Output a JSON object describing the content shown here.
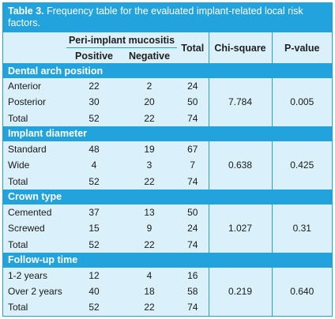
{
  "table": {
    "title_bold": "Table 3.",
    "title_rest": " Frequency table for the evaluated implant-related local risk factors.",
    "headers": {
      "group": "Peri-implant mucositis",
      "positive": "Positive",
      "negative": "Negative",
      "total": "Total",
      "chi": "Chi-square",
      "p": "P-value"
    },
    "sections": [
      {
        "name": "Dental arch position",
        "rows": [
          {
            "label": "Anterior",
            "pos": "22",
            "neg": "2",
            "tot": "24"
          },
          {
            "label": "Posterior",
            "pos": "30",
            "neg": "20",
            "tot": "50"
          },
          {
            "label": "Total",
            "pos": "52",
            "neg": "22",
            "tot": "74"
          }
        ],
        "chi": "7.784",
        "p": "0.005"
      },
      {
        "name": "Implant diameter",
        "rows": [
          {
            "label": "Standard",
            "pos": "48",
            "neg": "19",
            "tot": "67"
          },
          {
            "label": "Wide",
            "pos": "4",
            "neg": "3",
            "tot": "7"
          },
          {
            "label": "Total",
            "pos": "52",
            "neg": "22",
            "tot": "74"
          }
        ],
        "chi": "0.638",
        "p": "0.425"
      },
      {
        "name": "Crown type",
        "rows": [
          {
            "label": "Cemented",
            "pos": "37",
            "neg": "13",
            "tot": "50"
          },
          {
            "label": "Screwed",
            "pos": "15",
            "neg": "9",
            "tot": "24"
          },
          {
            "label": "Total",
            "pos": "52",
            "neg": "22",
            "tot": "74"
          }
        ],
        "chi": "1.027",
        "p": "0.31"
      },
      {
        "name": "Follow-up time",
        "rows": [
          {
            "label": "1-2 years",
            "pos": "12",
            "neg": "4",
            "tot": "16"
          },
          {
            "label": "Over 2 years",
            "pos": "40",
            "neg": "18",
            "tot": "58"
          },
          {
            "label": "Total",
            "pos": "52",
            "neg": "22",
            "tot": "74"
          }
        ],
        "chi": "0.219",
        "p": "0.640"
      }
    ]
  }
}
